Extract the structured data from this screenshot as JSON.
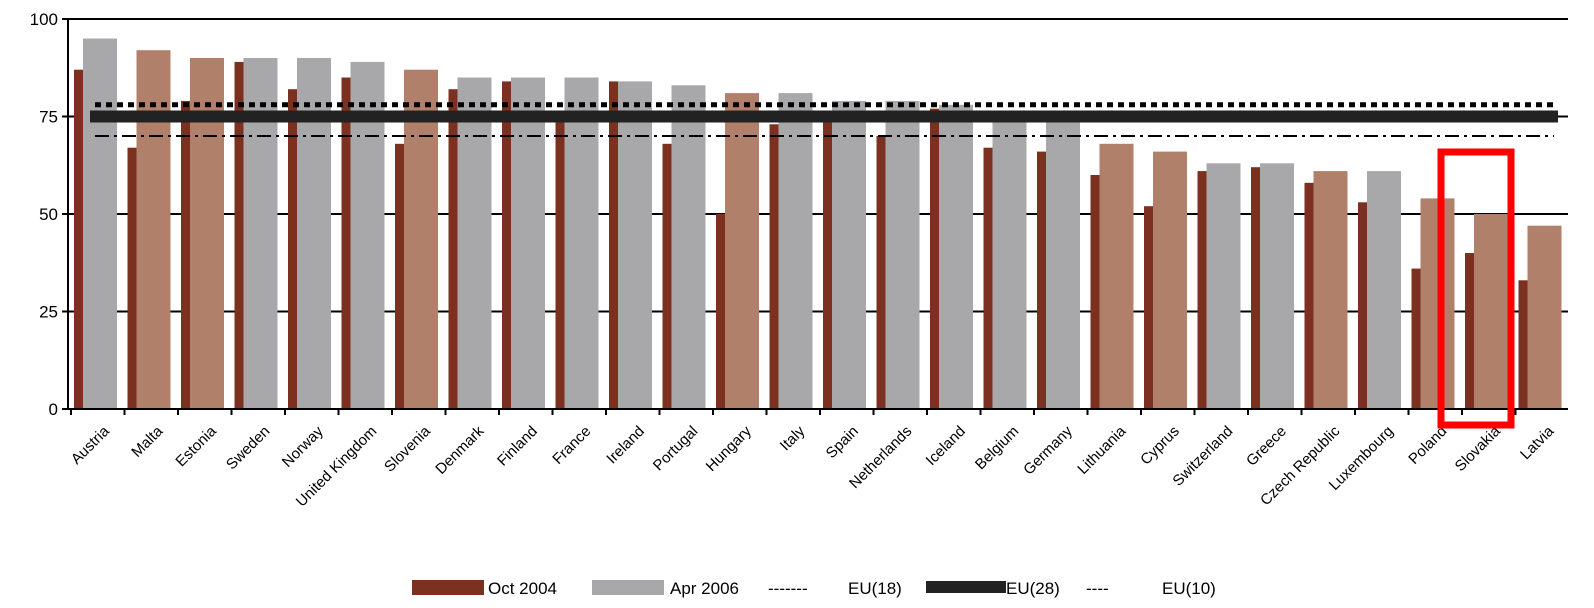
{
  "chart_data": {
    "type": "bar",
    "ylim": [
      0,
      100
    ],
    "yticks": [
      "0",
      "25",
      "50",
      "75",
      "100"
    ],
    "grid": true,
    "legend_position": "bottom",
    "categories": [
      "Austria",
      "Malta",
      "Estonia",
      "Sweden",
      "Norway",
      "United Kingdom",
      "Slovenia",
      "Denmark",
      "Finland",
      "France",
      "Ireland",
      "Portugal",
      "Hungary",
      "Italy",
      "Spain",
      "Netherlands",
      "Iceland",
      "Belgium",
      "Germany",
      "Lithuania",
      "Cyprus",
      "Switzerland",
      "Greece",
      "Czech Republic",
      "Luxembourg",
      "Poland",
      "Slovakia",
      "Latvia"
    ],
    "series": [
      {
        "name": "Oct 2004",
        "color": "#7b3020",
        "values": [
          87,
          67,
          79,
          89,
          82,
          85,
          68,
          82,
          84,
          74,
          84,
          68,
          50,
          73,
          74,
          70,
          77,
          67,
          66,
          60,
          52,
          61,
          62,
          58,
          53,
          36,
          40,
          33
        ]
      },
      {
        "name": "Apr 2006",
        "color_eu18": "#a8a8aa",
        "color_eu10": "#b0806a",
        "values": [
          95,
          92,
          90,
          90,
          90,
          89,
          87,
          85,
          85,
          85,
          84,
          83,
          81,
          81,
          79,
          79,
          78,
          75,
          75,
          68,
          66,
          63,
          63,
          61,
          61,
          54,
          50,
          47
        ]
      }
    ],
    "group_of_apr_2006": [
      "eu18",
      "eu10",
      "eu10",
      "eu18",
      "eu18",
      "eu18",
      "eu10",
      "eu18",
      "eu18",
      "eu18",
      "eu18",
      "eu18",
      "eu10",
      "eu18",
      "eu18",
      "eu18",
      "eu18",
      "eu18",
      "eu18",
      "eu10",
      "eu10",
      "eu18",
      "eu18",
      "eu10",
      "eu18",
      "eu10",
      "eu10",
      "eu10"
    ],
    "reference_lines": [
      {
        "name": "EU(18)",
        "value": 78,
        "style": "dotted"
      },
      {
        "name": "EU(28)",
        "value": 75,
        "style": "thick"
      },
      {
        "name": "EU(10)",
        "value": 70,
        "style": "dashdot"
      }
    ],
    "highlight_category": "Slovakia",
    "highlight_color": "#ff0000",
    "legend": [
      "Oct 2004",
      "Apr 2006",
      "EU(18)",
      "EU(28)",
      "EU(10)"
    ],
    "legend_labels": {
      "oct": "Oct 2004",
      "apr": "Apr 2006",
      "eu18": "EU(18)",
      "eu28": "EU(28)",
      "eu10": "EU(10)"
    },
    "legend_dash_text": "-------",
    "legend_dashdot_text": "----"
  }
}
